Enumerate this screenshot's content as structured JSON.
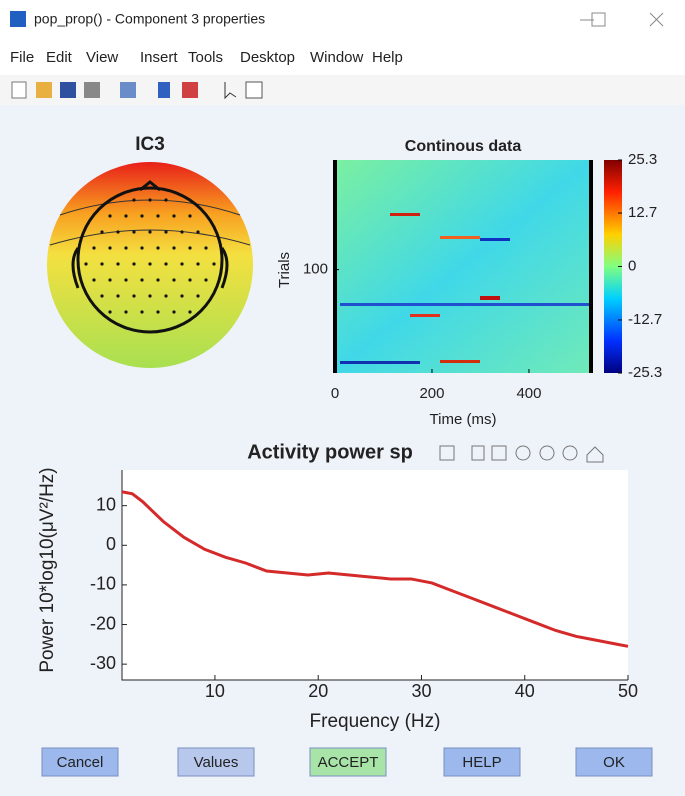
{
  "window": {
    "title": "pop_prop() - Component 3 properties"
  },
  "menu": [
    "File",
    "Edit",
    "View",
    "Insert",
    "Tools",
    "Desktop",
    "Window",
    "Help"
  ],
  "topoplot": {
    "title": "IC3"
  },
  "erpimage": {
    "title": "Continous data",
    "ylabel": "Trials",
    "xlabel": "Time (ms)",
    "xlim": [
      0,
      530
    ],
    "xticks": [
      0,
      200,
      400
    ],
    "ylim": [
      0,
      206
    ],
    "yticks": [
      100
    ],
    "clim": [
      -25.3,
      25.3
    ],
    "cticks": [
      25.3,
      12.7,
      0,
      -12.7,
      -25.3
    ]
  },
  "spectrum": {
    "type": "line",
    "title": "Activity power sp",
    "xlabel": "Frequency (Hz)",
    "ylabel": "Power 10*log10(μV²/Hz)",
    "x": [
      1,
      2,
      3,
      5,
      7,
      9,
      11,
      13,
      15,
      17,
      19,
      21,
      23,
      25,
      27,
      29,
      31,
      33,
      35,
      37,
      39,
      41,
      43,
      45,
      47,
      49,
      50
    ],
    "values": [
      13.5,
      13,
      11,
      6,
      2,
      -1,
      -3,
      -4.5,
      -6.5,
      -7,
      -7.5,
      -7,
      -7.5,
      -8,
      -8.5,
      -8.5,
      -9.5,
      -11.5,
      -13.5,
      -15.5,
      -17.5,
      -19.5,
      -21.5,
      -23,
      -24,
      -25,
      -25.5
    ],
    "color": "#d42a2a",
    "xlim": [
      1,
      50
    ],
    "xticks": [
      10,
      20,
      30,
      40,
      50
    ],
    "ylim": [
      -34,
      19
    ],
    "yticks": [
      10,
      0,
      -10,
      -20,
      -30
    ]
  },
  "buttons": [
    "Cancel",
    "Values",
    "ACCEPT",
    "HELP",
    "OK"
  ]
}
